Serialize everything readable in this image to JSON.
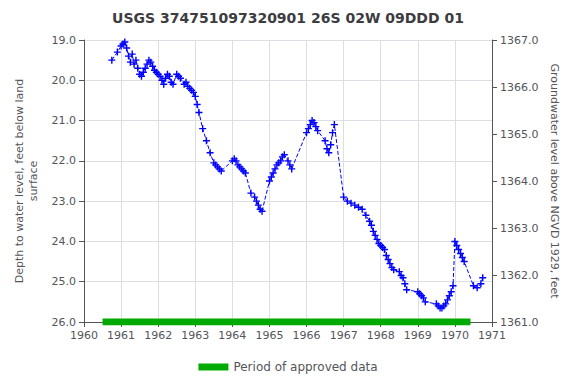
{
  "chart_data": {
    "type": "line",
    "title": "USGS 374751097320901 26S 02W 09DDD 01",
    "ylabel": "Depth to water level, feet below land\nsurface",
    "y2label": "Groundwater level above NGVD 1929, feet",
    "xlim": [
      1960,
      1971
    ],
    "xticks": [
      1960,
      1961,
      1962,
      1963,
      1964,
      1965,
      1966,
      1967,
      1968,
      1969,
      1970,
      1971
    ],
    "ylim": [
      26.0,
      19.0
    ],
    "yticks": [
      {
        "value": 19.0,
        "label": "19.0"
      },
      {
        "value": 20.0,
        "label": "20.0"
      },
      {
        "value": 21.0,
        "label": "21.0"
      },
      {
        "value": 22.0,
        "label": "22.0"
      },
      {
        "value": 23.0,
        "label": "23.0"
      },
      {
        "value": 24.0,
        "label": "24.0"
      },
      {
        "value": 25.0,
        "label": "25.0"
      },
      {
        "value": 26.0,
        "label": "26.0"
      }
    ],
    "y2lim": [
      1361.0,
      1367.0
    ],
    "y2ticks": [
      {
        "value": 1361.0,
        "label": "1361.0"
      },
      {
        "value": 1362.0,
        "label": "1362.0"
      },
      {
        "value": 1363.0,
        "label": "1363.0"
      },
      {
        "value": 1364.0,
        "label": "1364.0"
      },
      {
        "value": 1365.0,
        "label": "1365.0"
      },
      {
        "value": 1366.0,
        "label": "1366.0"
      },
      {
        "value": 1367.0,
        "label": "1367.0"
      }
    ],
    "grid": true,
    "legend": "bottom",
    "x": [
      1960.75,
      1960.9,
      1961.0,
      1961.05,
      1961.1,
      1961.15,
      1961.2,
      1961.25,
      1961.3,
      1961.35,
      1961.4,
      1961.45,
      1961.5,
      1961.55,
      1961.6,
      1961.65,
      1961.7,
      1961.75,
      1961.8,
      1961.85,
      1961.9,
      1961.95,
      1962.0,
      1962.05,
      1962.1,
      1962.15,
      1962.2,
      1962.25,
      1962.3,
      1962.35,
      1962.4,
      1962.5,
      1962.55,
      1962.6,
      1962.7,
      1962.75,
      1962.8,
      1962.85,
      1962.9,
      1962.95,
      1963.0,
      1963.05,
      1963.1,
      1963.2,
      1963.3,
      1963.4,
      1963.5,
      1963.55,
      1963.6,
      1963.65,
      1963.7,
      1964.0,
      1964.05,
      1964.1,
      1964.15,
      1964.2,
      1964.25,
      1964.3,
      1964.35,
      1964.5,
      1964.6,
      1964.65,
      1964.7,
      1964.75,
      1964.8,
      1965.0,
      1965.05,
      1965.1,
      1965.15,
      1965.2,
      1965.25,
      1965.3,
      1965.35,
      1965.4,
      1965.5,
      1965.55,
      1965.6,
      1966.0,
      1966.05,
      1966.1,
      1966.15,
      1966.2,
      1966.25,
      1966.3,
      1966.5,
      1966.55,
      1966.6,
      1966.65,
      1966.7,
      1966.75,
      1967.0,
      1967.1,
      1967.2,
      1967.3,
      1967.4,
      1967.5,
      1967.6,
      1967.7,
      1967.75,
      1967.8,
      1967.85,
      1967.9,
      1967.95,
      1968.0,
      1968.05,
      1968.1,
      1968.15,
      1968.2,
      1968.25,
      1968.3,
      1968.35,
      1968.5,
      1968.55,
      1968.6,
      1968.65,
      1968.7,
      1969.0,
      1969.05,
      1969.1,
      1969.15,
      1969.2,
      1969.5,
      1969.55,
      1969.6,
      1969.65,
      1969.7,
      1969.75,
      1969.8,
      1969.85,
      1969.9,
      1969.95,
      1970.0,
      1970.05,
      1970.1,
      1970.15,
      1970.2,
      1970.25,
      1970.5,
      1970.6,
      1970.7,
      1970.75
    ],
    "series": [
      {
        "color": "#0000FF",
        "marker": "+",
        "line_style": "dashed",
        "values": [
          19.5,
          19.3,
          19.15,
          19.1,
          19.05,
          19.2,
          19.4,
          19.55,
          19.35,
          19.6,
          19.5,
          19.7,
          19.85,
          19.9,
          19.8,
          19.7,
          19.6,
          19.5,
          19.55,
          19.65,
          19.75,
          19.8,
          19.85,
          19.9,
          20.0,
          20.1,
          19.95,
          19.85,
          19.9,
          20.05,
          20.1,
          19.85,
          19.9,
          19.95,
          20.1,
          20.05,
          20.15,
          20.2,
          20.25,
          20.3,
          20.4,
          20.6,
          20.8,
          21.2,
          21.5,
          21.8,
          22.05,
          22.1,
          22.15,
          22.2,
          22.25,
          22.0,
          21.95,
          22.0,
          22.1,
          22.15,
          22.2,
          22.25,
          22.3,
          22.8,
          22.9,
          23.0,
          23.1,
          23.2,
          23.25,
          22.5,
          22.4,
          22.3,
          22.2,
          22.1,
          22.05,
          22.0,
          21.9,
          21.85,
          22.0,
          22.1,
          22.2,
          21.3,
          21.2,
          21.1,
          21.0,
          21.05,
          21.15,
          21.25,
          21.5,
          21.7,
          21.8,
          21.6,
          21.3,
          21.1,
          22.9,
          23.0,
          23.05,
          23.1,
          23.15,
          23.2,
          23.35,
          23.5,
          23.6,
          23.75,
          23.85,
          23.95,
          24.05,
          24.1,
          24.15,
          24.2,
          24.35,
          24.45,
          24.55,
          24.65,
          24.7,
          24.75,
          24.85,
          24.9,
          25.05,
          25.2,
          25.25,
          25.3,
          25.35,
          25.4,
          25.5,
          25.55,
          25.6,
          25.65,
          25.65,
          25.6,
          25.55,
          25.45,
          25.35,
          25.25,
          25.1,
          24.0,
          24.1,
          24.2,
          24.3,
          24.4,
          24.5,
          25.1,
          25.15,
          25.05,
          24.9
        ]
      },
      {
        "name": "Period of approved data",
        "color": "#00aa00",
        "line_style": "solid",
        "x": [
          1960.5,
          1970.42
        ],
        "values": [
          26.0,
          26.0
        ]
      }
    ]
  }
}
